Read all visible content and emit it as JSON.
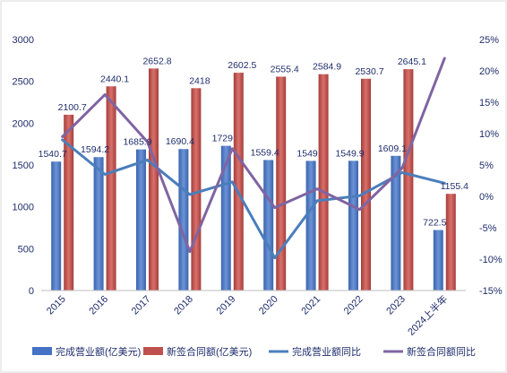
{
  "chart_data": {
    "type": "bar",
    "categories": [
      "2015",
      "2016",
      "2017",
      "2018",
      "2019",
      "2020",
      "2021",
      "2022",
      "2023",
      "2024上半年"
    ],
    "y_left": {
      "min": 0,
      "max": 3000,
      "ticks": [
        "0",
        "500",
        "1000",
        "1500",
        "2000",
        "2500",
        "3000"
      ]
    },
    "y_right": {
      "min": -15,
      "max": 25,
      "ticks": [
        "-15%",
        "-10%",
        "-5%",
        "0%",
        "5%",
        "10%",
        "15%",
        "20%",
        "25%"
      ]
    },
    "grid": false,
    "legend_position": "bottom",
    "series": [
      {
        "name": "完成营业额(亿美元)",
        "kind": "bar",
        "axis": "left",
        "color": "#4472c4",
        "values": [
          1540.7,
          1594.2,
          1685.9,
          1690.4,
          1729,
          1559.4,
          1549,
          1549.9,
          1609.1,
          722.5
        ],
        "labels": [
          "1540.7",
          "1594.2",
          "1685.9",
          "1690.4",
          "1729",
          "1559.4",
          "1549",
          "1549.9",
          "1609.1",
          "722.5"
        ]
      },
      {
        "name": "新签合同额(亿美元)",
        "kind": "bar",
        "axis": "left",
        "color": "#c0504d",
        "values": [
          2100.7,
          2440.1,
          2652.8,
          2418,
          2602.5,
          2555.4,
          2584.9,
          2530.7,
          2645.1,
          1155.4
        ],
        "labels": [
          "2100.7",
          "2440.1",
          "2652.8",
          "2418",
          "2602.5",
          "2555.4",
          "2584.9",
          "2530.7",
          "2645.1",
          "1155.4"
        ]
      },
      {
        "name": "完成营业额同比",
        "kind": "line",
        "axis": "right",
        "color": "#4a7ebb",
        "values": [
          9.0,
          3.5,
          5.8,
          0.3,
          2.3,
          -9.8,
          -0.7,
          0.1,
          3.8,
          2.1
        ]
      },
      {
        "name": "新签合同额同比",
        "kind": "line",
        "axis": "right",
        "color": "#8064a2",
        "values": [
          9.5,
          16.2,
          8.7,
          -8.8,
          7.6,
          -1.8,
          1.2,
          -2.1,
          4.5,
          22.0
        ]
      }
    ]
  }
}
